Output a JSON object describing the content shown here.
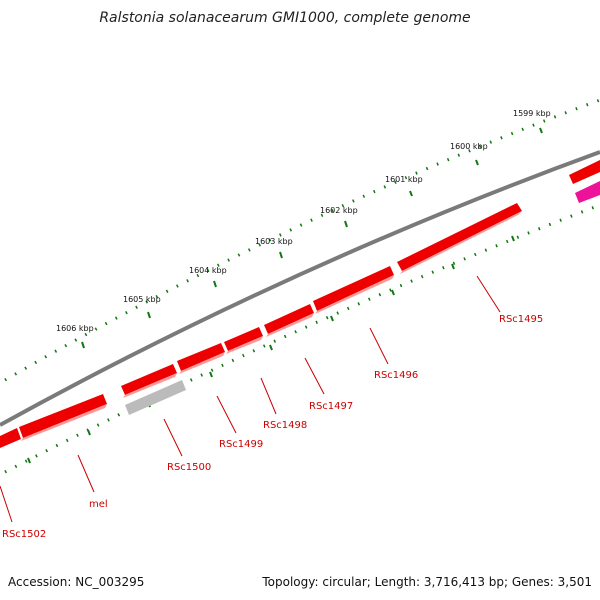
{
  "title": "Ralstonia solanacearum GMI1000, complete genome",
  "footer": {
    "accession": "Accession: NC_003295",
    "summary": "Topology: circular; Length: 3,716,413 bp; Genes: 3,501"
  },
  "scale_labels": [
    "1599 kbp",
    "1600 kbp",
    "1601 kbp",
    "1602 kbp",
    "1603 kbp",
    "1604 kbp",
    "1605 kbp",
    "1606 kbp"
  ],
  "gene_labels": [
    "RSc1495",
    "RSc1496",
    "RSc1497",
    "RSc1498",
    "RSc1499",
    "RSc1500",
    "mel",
    "RSc1502"
  ],
  "colors": {
    "gene_red": "#ee0000",
    "gene_red_light": "#ff9999",
    "gene_grey": "#bbbbbb",
    "gene_magenta": "#ee1199",
    "backbone": "#7a7a7a",
    "tick_green": "#117711",
    "label_red": "#cc0000"
  }
}
